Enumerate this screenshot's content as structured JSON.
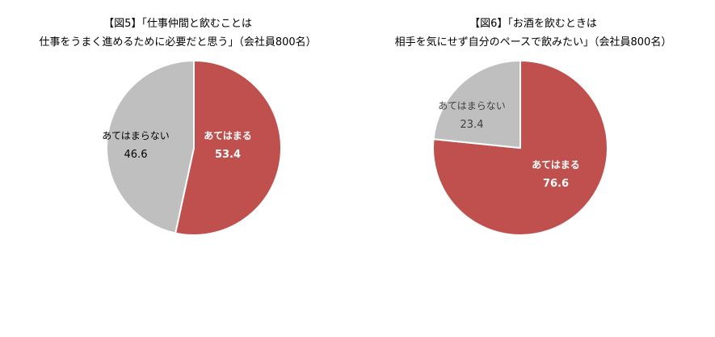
{
  "chart_data": [
    {
      "type": "pie",
      "title": [
        "【図5】「仕事仲間と飲むことは",
        "仕事をうまく進めるために必要だと思う」（会社員800名）"
      ],
      "slices": [
        {
          "label": "あてはまる",
          "value": 53.4,
          "value_text": "53.4",
          "color": "#c0504d",
          "text_color": "#ffffff"
        },
        {
          "label": "あてはまらない",
          "value": 46.6,
          "value_text": "46.6",
          "color": "#bfbfbf",
          "text_color": "#000000"
        }
      ]
    },
    {
      "type": "pie",
      "title": [
        "【図6】「お酒を飲むときは",
        "相手を気にせず自分のペースで飲みたい」（会社員800名）"
      ],
      "slices": [
        {
          "label": "あてはまる",
          "value": 76.6,
          "value_text": "76.6",
          "color": "#c0504d",
          "text_color": "#ffffff"
        },
        {
          "label": "あてはまらない",
          "value": 23.4,
          "value_text": "23.4",
          "color": "#bfbfbf",
          "text_color": "#404040"
        }
      ]
    }
  ]
}
